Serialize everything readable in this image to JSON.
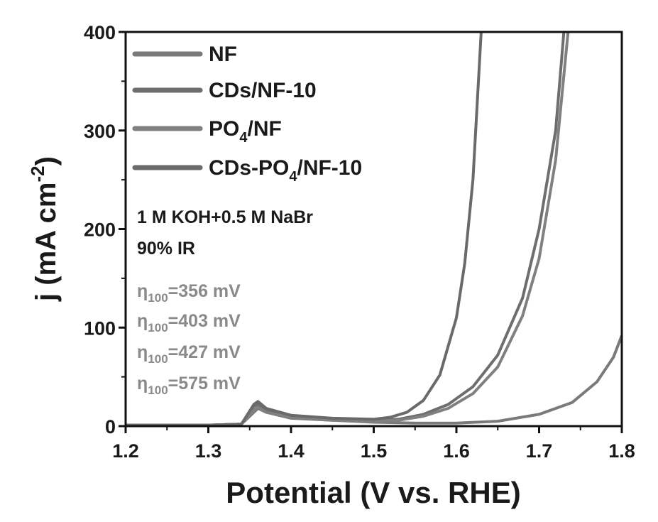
{
  "chart_data": {
    "type": "line",
    "xlabel": "Potential (V vs. RHE)",
    "ylabel_parts": [
      "j (mA cm",
      "-2",
      ")"
    ],
    "xlim": [
      1.2,
      1.8
    ],
    "ylim": [
      0,
      400
    ],
    "x_ticks": [
      "1.2",
      "1.3",
      "1.4",
      "1.5",
      "1.6",
      "1.7",
      "1.8"
    ],
    "y_ticks": [
      "0",
      "100",
      "200",
      "300",
      "400"
    ],
    "grid": false,
    "legend_placement": "top-left",
    "series": [
      {
        "name": "NF",
        "legend_parts": [
          "NF"
        ],
        "color": "#7a7a7a",
        "points": [
          [
            1.2,
            1
          ],
          [
            1.3,
            1
          ],
          [
            1.34,
            2
          ],
          [
            1.355,
            14
          ],
          [
            1.36,
            18
          ],
          [
            1.37,
            14
          ],
          [
            1.4,
            8
          ],
          [
            1.45,
            6
          ],
          [
            1.5,
            4
          ],
          [
            1.55,
            3
          ],
          [
            1.6,
            3
          ],
          [
            1.65,
            5
          ],
          [
            1.7,
            12
          ],
          [
            1.74,
            24
          ],
          [
            1.77,
            45
          ],
          [
            1.79,
            70
          ],
          [
            1.8,
            92
          ]
        ]
      },
      {
        "name": "CDs/NF-10",
        "legend_parts": [
          "CDs/NF-10"
        ],
        "color": "#6e6e6e",
        "points": [
          [
            1.2,
            1
          ],
          [
            1.3,
            1
          ],
          [
            1.34,
            2
          ],
          [
            1.355,
            20
          ],
          [
            1.36,
            22
          ],
          [
            1.37,
            16
          ],
          [
            1.4,
            10
          ],
          [
            1.45,
            7
          ],
          [
            1.5,
            6
          ],
          [
            1.53,
            7
          ],
          [
            1.56,
            12
          ],
          [
            1.59,
            22
          ],
          [
            1.62,
            40
          ],
          [
            1.65,
            72
          ],
          [
            1.68,
            130
          ],
          [
            1.7,
            200
          ],
          [
            1.72,
            300
          ],
          [
            1.73,
            400
          ]
        ]
      },
      {
        "name": "PO4/NF",
        "legend_parts": [
          "PO",
          "4",
          "/NF"
        ],
        "color": "#808080",
        "points": [
          [
            1.2,
            1
          ],
          [
            1.3,
            1
          ],
          [
            1.34,
            2
          ],
          [
            1.355,
            16
          ],
          [
            1.36,
            19
          ],
          [
            1.37,
            14
          ],
          [
            1.4,
            9
          ],
          [
            1.45,
            6
          ],
          [
            1.5,
            5
          ],
          [
            1.53,
            6
          ],
          [
            1.56,
            10
          ],
          [
            1.59,
            18
          ],
          [
            1.62,
            33
          ],
          [
            1.65,
            60
          ],
          [
            1.68,
            112
          ],
          [
            1.7,
            170
          ],
          [
            1.72,
            270
          ],
          [
            1.735,
            400
          ]
        ]
      },
      {
        "name": "CDs-PO4/NF-10",
        "legend_parts": [
          "CDs-PO",
          "4",
          "/NF-10"
        ],
        "color": "#6a6a6a",
        "points": [
          [
            1.2,
            1
          ],
          [
            1.3,
            1
          ],
          [
            1.34,
            2
          ],
          [
            1.355,
            22
          ],
          [
            1.36,
            25
          ],
          [
            1.37,
            18
          ],
          [
            1.4,
            11
          ],
          [
            1.45,
            8
          ],
          [
            1.5,
            7
          ],
          [
            1.52,
            9
          ],
          [
            1.54,
            14
          ],
          [
            1.56,
            26
          ],
          [
            1.58,
            52
          ],
          [
            1.6,
            110
          ],
          [
            1.61,
            165
          ],
          [
            1.62,
            250
          ],
          [
            1.63,
            400
          ]
        ]
      }
    ],
    "annotations": {
      "condition_lines": [
        "1 M KOH+0.5 M NaBr",
        "90% IR"
      ],
      "overpotentials": [
        {
          "symbol": "η",
          "sub": "100",
          "value": "=356 mV"
        },
        {
          "symbol": "η",
          "sub": "100",
          "value": "=403 mV"
        },
        {
          "symbol": "η",
          "sub": "100",
          "value": "=427 mV"
        },
        {
          "symbol": "η",
          "sub": "100",
          "value": "=575 mV"
        }
      ]
    }
  }
}
